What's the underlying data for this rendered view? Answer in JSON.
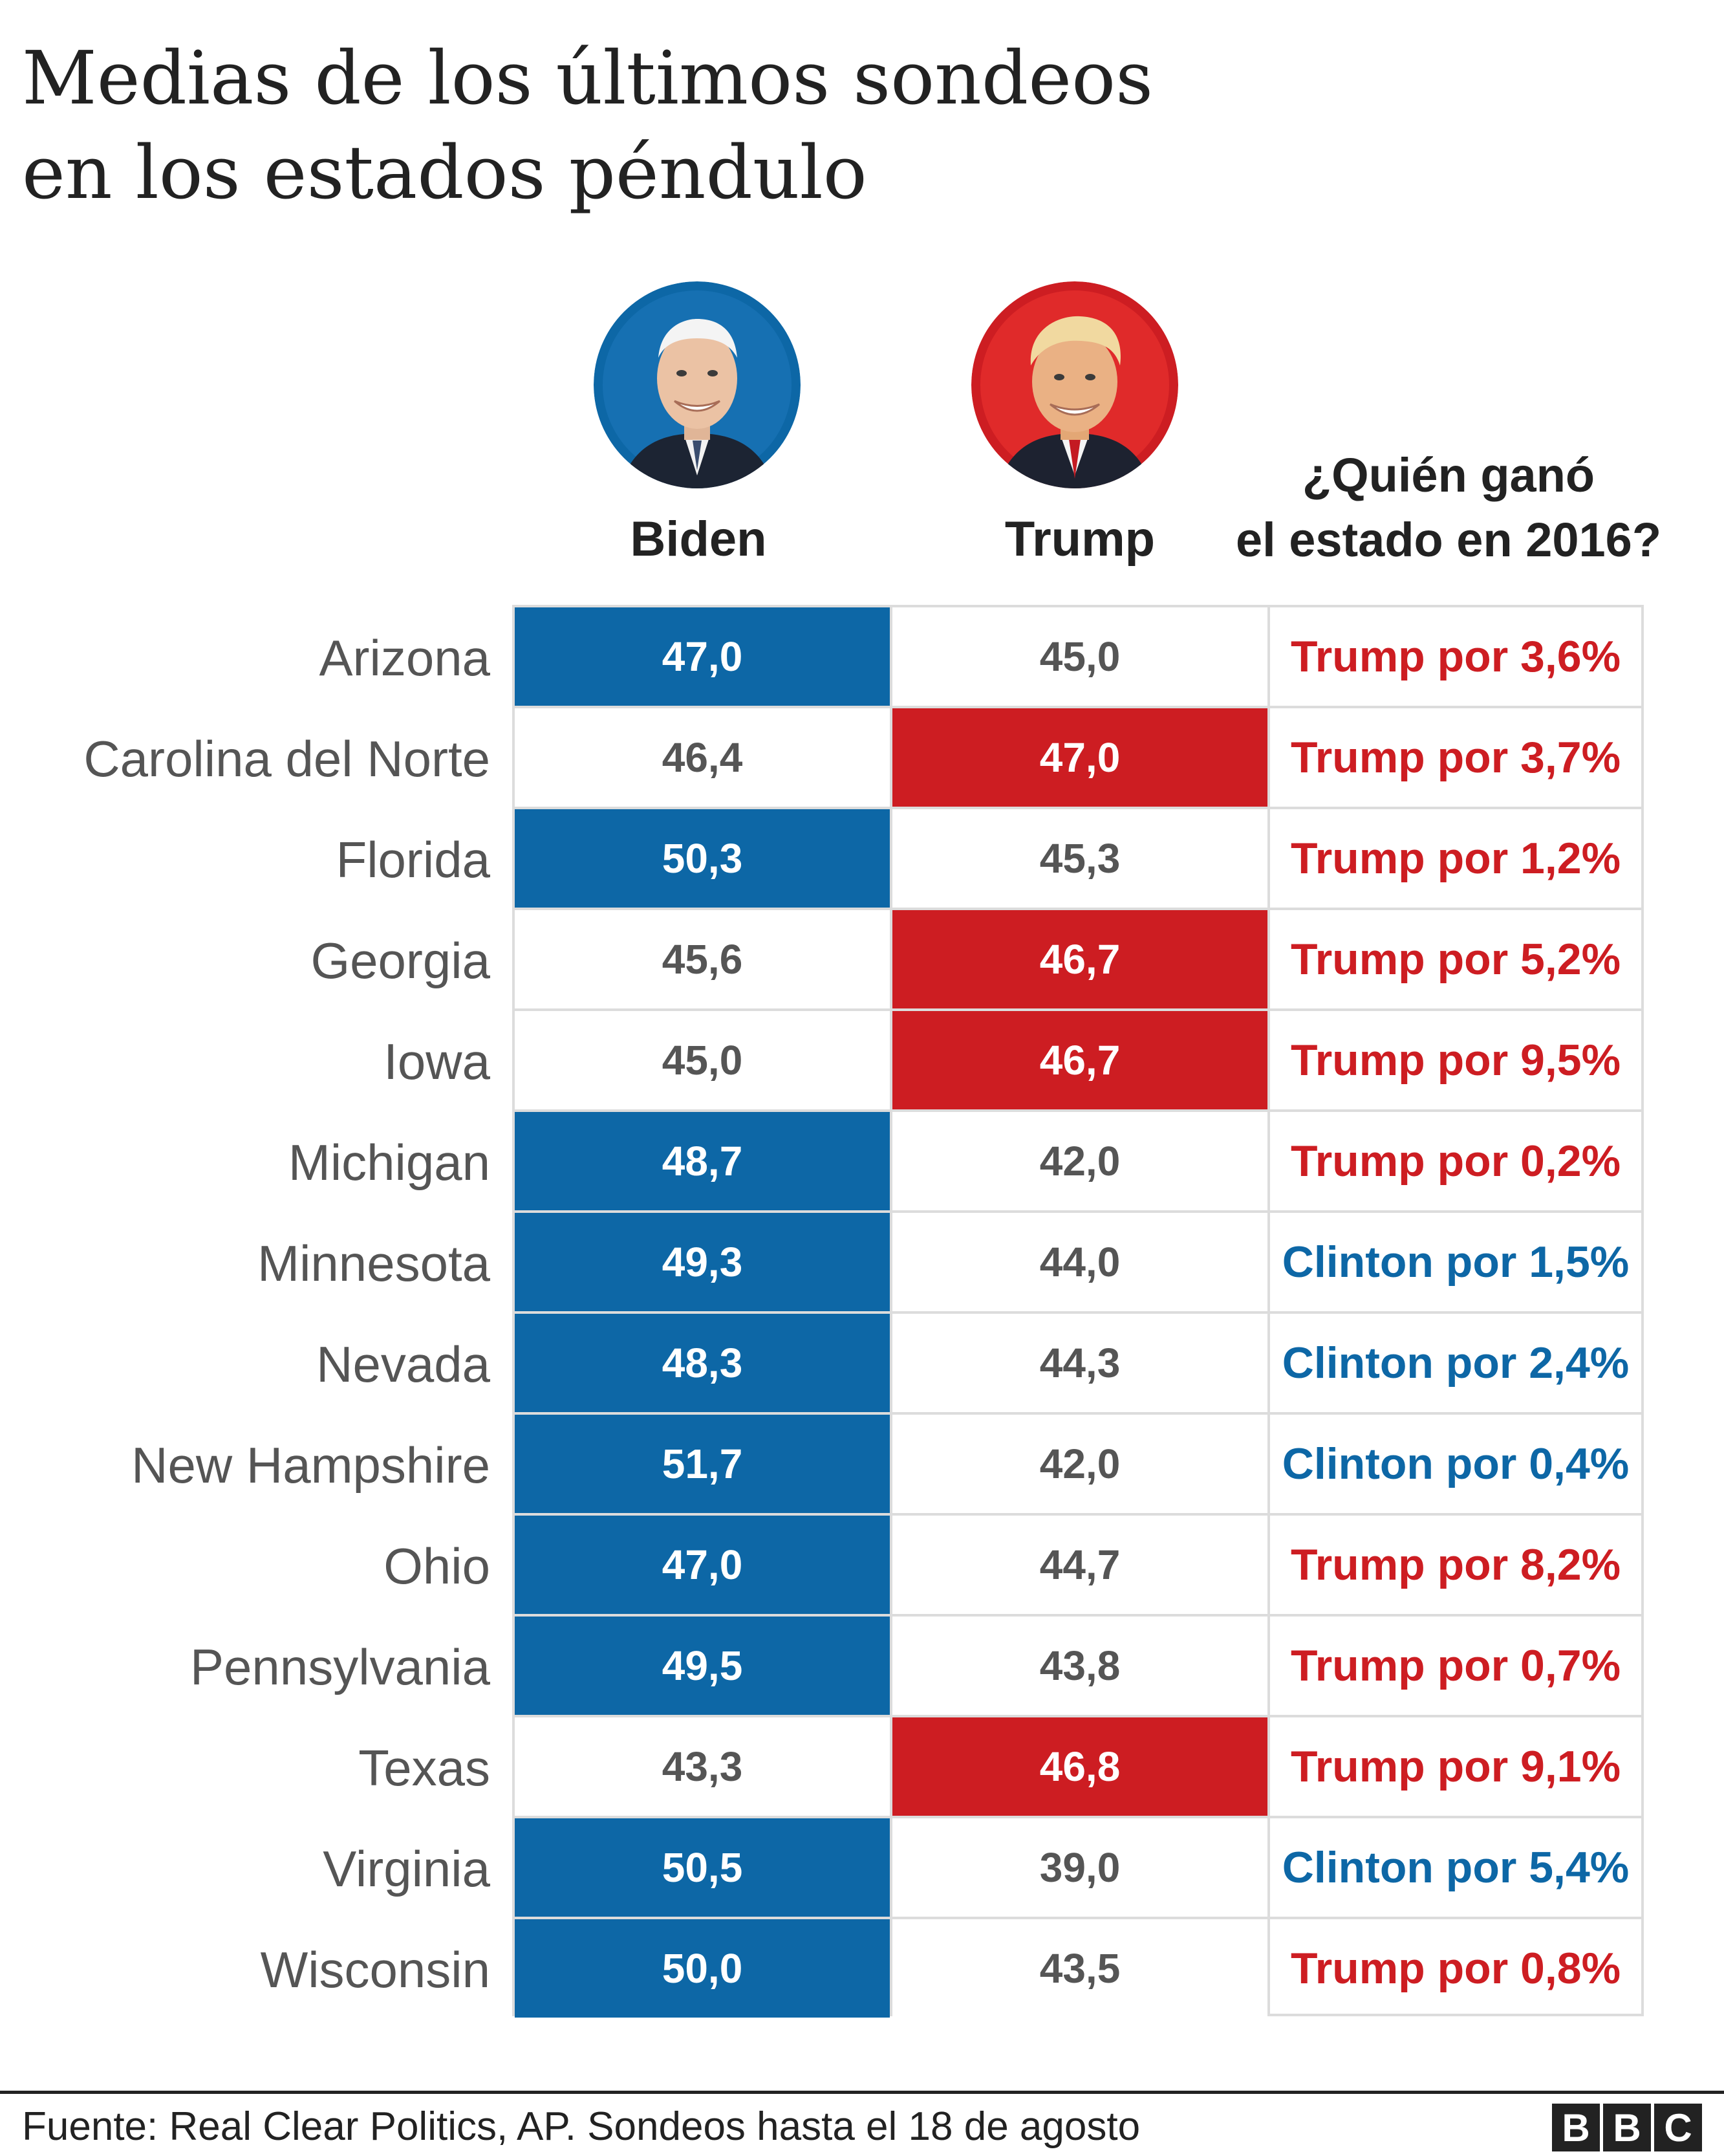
{
  "title": {
    "line1": "Medias de los últimos sondeos",
    "line2": "en los estados péndulo"
  },
  "columns": {
    "biden": "Biden",
    "trump": "Trump",
    "winner_line1": "¿Quién ganó",
    "winner_line2": "el estado en 2016?"
  },
  "colors": {
    "biden": "#0d67a6",
    "trump": "#cd1d22",
    "text_muted": "#555555"
  },
  "chart_data": {
    "type": "table",
    "title": "Medias de los últimos sondeos en los estados péndulo",
    "columns": [
      "Biden",
      "Trump",
      "¿Quién ganó el estado en 2016?"
    ],
    "rows": [
      {
        "state": "Arizona",
        "biden": "47,0",
        "trump": "45,0",
        "leader": "biden",
        "winner_2016": "Trump por 3,6%",
        "winner_party": "trump"
      },
      {
        "state": "Carolina del Norte",
        "biden": "46,4",
        "trump": "47,0",
        "leader": "trump",
        "winner_2016": "Trump por 3,7%",
        "winner_party": "trump"
      },
      {
        "state": "Florida",
        "biden": "50,3",
        "trump": "45,3",
        "leader": "biden",
        "winner_2016": "Trump por 1,2%",
        "winner_party": "trump"
      },
      {
        "state": "Georgia",
        "biden": "45,6",
        "trump": "46,7",
        "leader": "trump",
        "winner_2016": "Trump por 5,2%",
        "winner_party": "trump"
      },
      {
        "state": "Iowa",
        "biden": "45,0",
        "trump": "46,7",
        "leader": "trump",
        "winner_2016": "Trump por 9,5%",
        "winner_party": "trump"
      },
      {
        "state": "Michigan",
        "biden": "48,7",
        "trump": "42,0",
        "leader": "biden",
        "winner_2016": "Trump por 0,2%",
        "winner_party": "trump"
      },
      {
        "state": "Minnesota",
        "biden": "49,3",
        "trump": "44,0",
        "leader": "biden",
        "winner_2016": "Clinton por 1,5%",
        "winner_party": "clinton"
      },
      {
        "state": "Nevada",
        "biden": "48,3",
        "trump": "44,3",
        "leader": "biden",
        "winner_2016": "Clinton por 2,4%",
        "winner_party": "clinton"
      },
      {
        "state": "New Hampshire",
        "biden": "51,7",
        "trump": "42,0",
        "leader": "biden",
        "winner_2016": "Clinton por 0,4%",
        "winner_party": "clinton"
      },
      {
        "state": "Ohio",
        "biden": "47,0",
        "trump": "44,7",
        "leader": "biden",
        "winner_2016": "Trump por 8,2%",
        "winner_party": "trump"
      },
      {
        "state": "Pennsylvania",
        "biden": "49,5",
        "trump": "43,8",
        "leader": "biden",
        "winner_2016": "Trump por 0,7%",
        "winner_party": "trump"
      },
      {
        "state": "Texas",
        "biden": "43,3",
        "trump": "46,8",
        "leader": "trump",
        "winner_2016": "Trump por 9,1%",
        "winner_party": "trump"
      },
      {
        "state": "Virginia",
        "biden": "50,5",
        "trump": "39,0",
        "leader": "biden",
        "winner_2016": "Clinton por 5,4%",
        "winner_party": "clinton"
      },
      {
        "state": "Wisconsin",
        "biden": "50,0",
        "trump": "43,5",
        "leader": "biden",
        "winner_2016": "Trump por 0,8%",
        "winner_party": "trump"
      }
    ]
  },
  "footer": {
    "source": "Fuente: Real Clear Politics, AP. Sondeos hasta el 18 de agosto",
    "logo": [
      "B",
      "B",
      "C"
    ]
  }
}
